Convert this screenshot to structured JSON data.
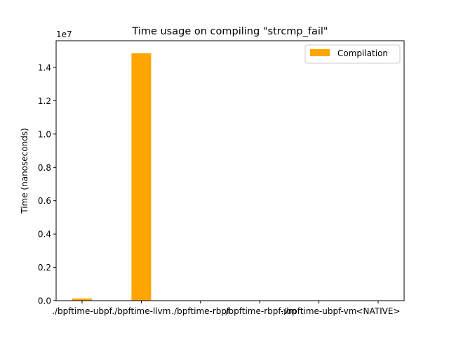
{
  "chart_data": {
    "type": "bar",
    "title": "Time usage on compiling \"strcmp_fail\"",
    "xlabel": "",
    "ylabel": "Time (nanoseconds)",
    "y_offset_label": "1e7",
    "categories": [
      "./bpftime-ubpf",
      "./bpftime-llvm",
      "./bpftime-rbpf",
      "./bpftime-rbpf-vm",
      "./bpftime-ubpf-vm",
      "<NATIVE>"
    ],
    "series": [
      {
        "name": "Compilation",
        "color": "#ffa500",
        "values": [
          130000,
          14850000,
          0,
          0,
          0,
          0
        ]
      }
    ],
    "ylim": [
      0,
      15600000
    ],
    "yticks": [
      0,
      2000000,
      4000000,
      6000000,
      8000000,
      10000000,
      12000000,
      14000000
    ],
    "ytick_labels": [
      "0.0",
      "0.2",
      "0.4",
      "0.6",
      "0.8",
      "1.0",
      "1.2",
      "1.4"
    ],
    "legend_position": "top-right",
    "grid": false
  }
}
